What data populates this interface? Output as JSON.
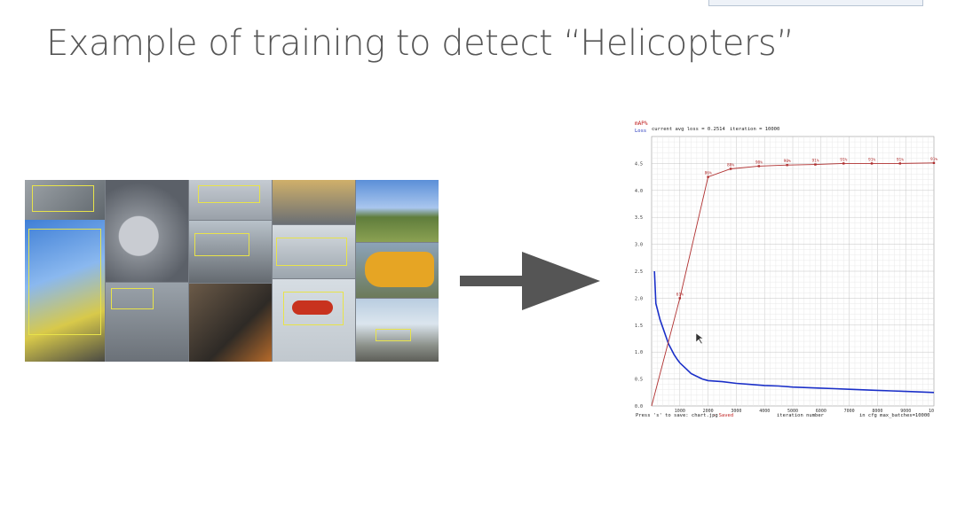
{
  "slide": {
    "title": "Example of training to detect “Helicopters”"
  },
  "chart": {
    "legend_map": "mAP%",
    "legend_loss": "Loss",
    "status_loss": "current avg loss = 0.2514",
    "status_iter": "iteration = 10000",
    "footer_save": "Press 's' to save: chart.jpg",
    "footer_saved": "- Saved",
    "footer_xlabel": "iteration number",
    "footer_max": "in cfg max_batches=10000"
  },
  "chart_data": {
    "type": "line",
    "xlabel": "iteration number",
    "xlim": [
      0,
      10000
    ],
    "ylim": [
      0,
      5.0
    ],
    "x_ticks": [
      "1000",
      "2000",
      "3000",
      "4000",
      "5000",
      "6000",
      "7000",
      "8000",
      "9000",
      "10"
    ],
    "y_ticks": [
      "0.0",
      "0.5",
      "1.0",
      "1.5",
      "2.0",
      "2.5",
      "3.0",
      "3.5",
      "4.0",
      "4.5"
    ],
    "series": [
      {
        "name": "Loss",
        "color": "#1a2fc8",
        "x": [
          100,
          150,
          200,
          300,
          400,
          500,
          600,
          700,
          800,
          900,
          1000,
          1200,
          1400,
          1600,
          1800,
          2000,
          2500,
          3000,
          3500,
          4000,
          4500,
          5000,
          5500,
          6000,
          6500,
          7000,
          7500,
          8000,
          8500,
          9000,
          9500,
          10000
        ],
        "y": [
          2.5,
          1.9,
          1.8,
          1.6,
          1.45,
          1.3,
          1.15,
          1.05,
          0.95,
          0.87,
          0.8,
          0.7,
          0.6,
          0.55,
          0.5,
          0.47,
          0.45,
          0.42,
          0.4,
          0.38,
          0.37,
          0.35,
          0.34,
          0.33,
          0.32,
          0.31,
          0.3,
          0.29,
          0.28,
          0.27,
          0.26,
          0.25
        ]
      },
      {
        "name": "mAP%",
        "color": "#b03030",
        "x": [
          0,
          1000,
          2000,
          2800,
          3800,
          4800,
          5800,
          6800,
          7800,
          8800,
          10000
        ],
        "y": [
          0.0,
          2.0,
          4.25,
          4.4,
          4.45,
          4.47,
          4.48,
          4.5,
          4.5,
          4.5,
          4.51
        ],
        "labels": [
          "",
          "61%",
          "86%",
          "88%",
          "90%",
          "90%",
          "91%",
          "91%",
          "91%",
          "91%",
          "91%"
        ]
      }
    ]
  }
}
